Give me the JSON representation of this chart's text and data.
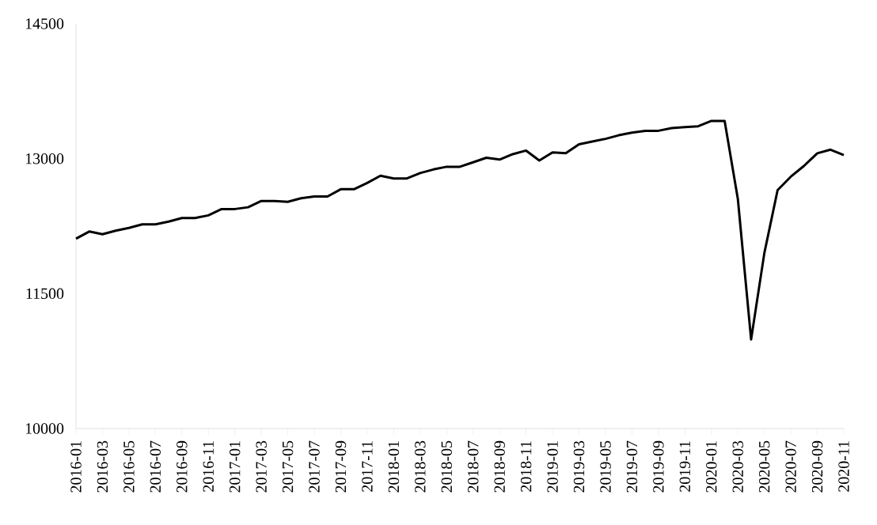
{
  "chart_data": {
    "type": "line",
    "categories": [
      "2016-01",
      null,
      "2016-03",
      null,
      "2016-05",
      null,
      "2016-07",
      null,
      "2016-09",
      null,
      "2016-11",
      null,
      "2017-01",
      null,
      "2017-03",
      null,
      "2017-05",
      null,
      "2017-07",
      null,
      "2017-09",
      null,
      "2017-11",
      null,
      "2018-01",
      null,
      "2018-03",
      null,
      "2018-05",
      null,
      "2018-07",
      null,
      "2018-09",
      null,
      "2018-11",
      null,
      "2019-01",
      null,
      "2019-03",
      null,
      "2019-05",
      null,
      "2019-07",
      null,
      "2019-09",
      null,
      "2019-11",
      null,
      "2020-01",
      null,
      "2020-03",
      null,
      "2020-05",
      null,
      "2020-07",
      null,
      "2020-09",
      null,
      "2020-11"
    ],
    "series": [
      {
        "color": "#000000",
        "values": [
          12110,
          12190,
          12160,
          12200,
          12230,
          12270,
          12270,
          12300,
          12340,
          12340,
          12370,
          12440,
          12440,
          12460,
          12530,
          12530,
          12520,
          12560,
          12580,
          12580,
          12660,
          12660,
          12730,
          12810,
          12780,
          12780,
          12840,
          12880,
          12910,
          12910,
          12960,
          13010,
          12990,
          13050,
          13090,
          12980,
          13070,
          13060,
          13160,
          13190,
          13220,
          13260,
          13290,
          13310,
          13310,
          13340,
          13350,
          13360,
          13420,
          13420,
          12550,
          10990,
          11950,
          12650,
          12800,
          12920,
          13060,
          13100,
          13040
        ]
      }
    ],
    "ylim": [
      10000,
      14500
    ],
    "yticks": [
      10000,
      11500,
      13000,
      14500
    ],
    "grid": false,
    "marker": "none",
    "line_style": "solid"
  }
}
